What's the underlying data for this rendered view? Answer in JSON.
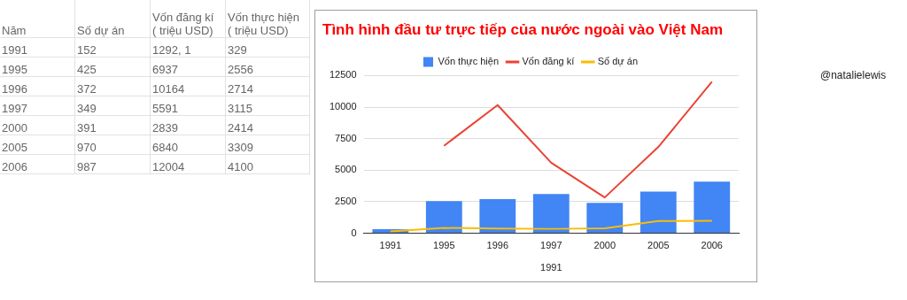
{
  "chart_data": [
    {
      "type": "other",
      "categories": [
        "Năm",
        "Số dự án",
        "Vốn đăng kí\n( triệu USD)",
        "Vốn thực hiện\n( triệu USD)"
      ],
      "annotations": [
        "1991",
        "152",
        "1292, 1",
        "329",
        "1995",
        "425",
        "6937",
        "2556",
        "1996",
        "372",
        "10164",
        "2714",
        "1997",
        "349",
        "5591",
        "3115",
        "2000",
        "391",
        "2839",
        "2414",
        "2005",
        "970",
        "6840",
        "3309",
        "2006",
        "987",
        "12004",
        "4100"
      ]
    },
    {
      "type": "bar",
      "title": "Tình hình đầu tư trực tiếp của nước ngoài vào Việt Nam",
      "xlabel": "1991",
      "categories": [
        "1991",
        "1995",
        "1996",
        "1997",
        "2000",
        "2005",
        "2006"
      ],
      "series": [
        {
          "name": "Vốn thực hiện",
          "type": "bar",
          "color": "#4285f4",
          "values": [
            329,
            2556,
            2714,
            3115,
            2414,
            3309,
            4100
          ]
        },
        {
          "name": "Vốn đăng kí",
          "type": "line",
          "color": "#ea4335",
          "values": [
            null,
            6937,
            10164,
            5591,
            2839,
            6840,
            12004
          ]
        },
        {
          "name": "Số dự án",
          "type": "line",
          "color": "#fbbc04",
          "values": [
            152,
            425,
            372,
            349,
            391,
            970,
            987
          ]
        }
      ],
      "ylim": [
        0,
        12500
      ],
      "yticks": [
        0,
        2500,
        5000,
        7500,
        10000,
        12500
      ],
      "grid": "y",
      "legend": "top",
      "marker": "none",
      "line_style": "solid",
      "annotations": [
        "@natalielewis"
      ]
    }
  ]
}
